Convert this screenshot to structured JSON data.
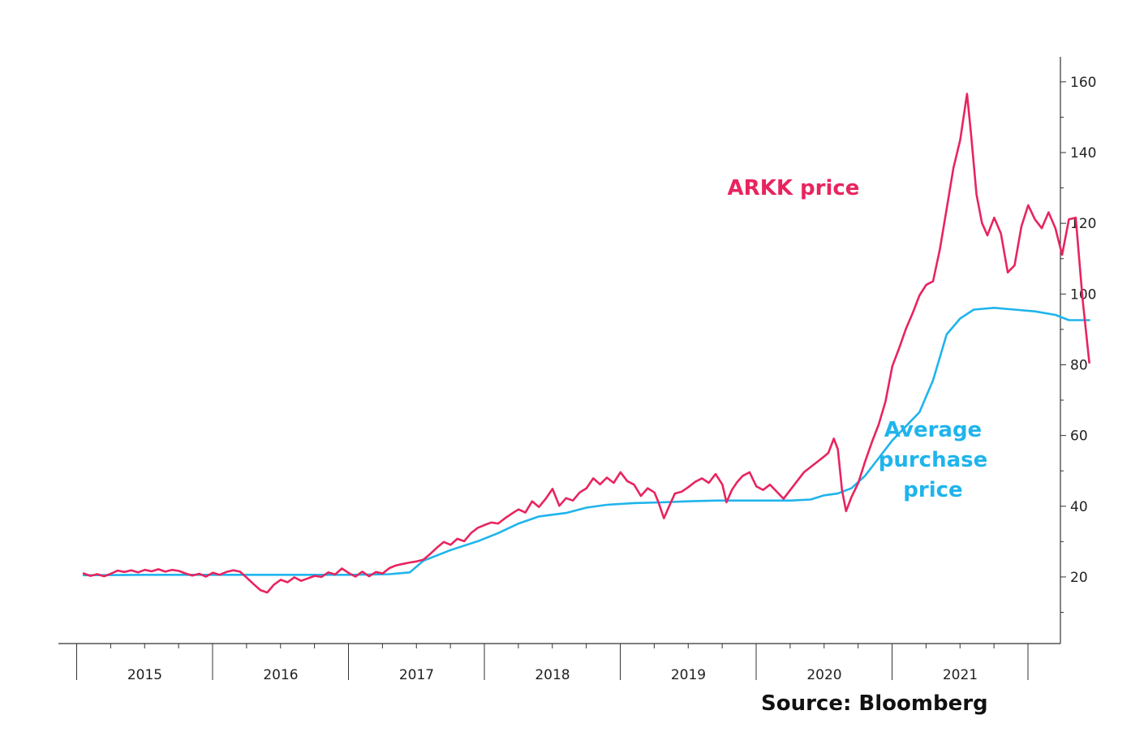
{
  "chart_data": {
    "type": "line",
    "xlim": [
      2014.55,
      2021.95
    ],
    "ylim": [
      0,
      165
    ],
    "x_tick_labels": [
      "2015",
      "2016",
      "2017",
      "2018",
      "2019",
      "2020",
      "2021"
    ],
    "y_tick_labels": [
      "20",
      "40",
      "60",
      "80",
      "100",
      "120",
      "140",
      "160"
    ],
    "y_ticks": [
      20,
      40,
      60,
      80,
      100,
      120,
      140,
      160
    ],
    "series_labels": {
      "arkk": "ARKK price",
      "avg": [
        "Average",
        "purchase",
        "price"
      ]
    },
    "colors": {
      "arkk": "#e8245f",
      "avg": "#1fb4ec",
      "axis": "#333333"
    },
    "series": [
      {
        "name": "ARKK price",
        "points": [
          [
            2014.55,
            21.0
          ],
          [
            2014.6,
            20.3
          ],
          [
            2014.65,
            20.8
          ],
          [
            2014.7,
            20.2
          ],
          [
            2014.75,
            20.9
          ],
          [
            2014.8,
            21.8
          ],
          [
            2014.85,
            21.4
          ],
          [
            2014.9,
            21.9
          ],
          [
            2014.95,
            21.3
          ],
          [
            2015.0,
            22.0
          ],
          [
            2015.05,
            21.6
          ],
          [
            2015.1,
            22.2
          ],
          [
            2015.15,
            21.5
          ],
          [
            2015.2,
            22.0
          ],
          [
            2015.25,
            21.7
          ],
          [
            2015.3,
            21.0
          ],
          [
            2015.35,
            20.4
          ],
          [
            2015.4,
            20.9
          ],
          [
            2015.45,
            20.1
          ],
          [
            2015.5,
            21.2
          ],
          [
            2015.55,
            20.6
          ],
          [
            2015.6,
            21.4
          ],
          [
            2015.65,
            21.9
          ],
          [
            2015.7,
            21.5
          ],
          [
            2015.75,
            19.8
          ],
          [
            2015.8,
            18.0
          ],
          [
            2015.85,
            16.3
          ],
          [
            2015.9,
            15.6
          ],
          [
            2015.95,
            17.8
          ],
          [
            2016.0,
            19.2
          ],
          [
            2016.05,
            18.5
          ],
          [
            2016.1,
            19.9
          ],
          [
            2016.15,
            18.9
          ],
          [
            2016.2,
            19.6
          ],
          [
            2016.25,
            20.3
          ],
          [
            2016.3,
            20.0
          ],
          [
            2016.35,
            21.3
          ],
          [
            2016.4,
            20.7
          ],
          [
            2016.45,
            22.4
          ],
          [
            2016.5,
            21.1
          ],
          [
            2016.55,
            20.1
          ],
          [
            2016.6,
            21.5
          ],
          [
            2016.65,
            20.2
          ],
          [
            2016.7,
            21.4
          ],
          [
            2016.75,
            21.0
          ],
          [
            2016.8,
            22.5
          ],
          [
            2016.85,
            23.3
          ],
          [
            2016.9,
            23.7
          ],
          [
            2016.95,
            24.1
          ],
          [
            2017.0,
            24.4
          ],
          [
            2017.05,
            24.9
          ],
          [
            2017.1,
            26.5
          ],
          [
            2017.15,
            28.3
          ],
          [
            2017.2,
            29.9
          ],
          [
            2017.25,
            29.1
          ],
          [
            2017.3,
            30.8
          ],
          [
            2017.35,
            30.1
          ],
          [
            2017.4,
            32.4
          ],
          [
            2017.45,
            33.9
          ],
          [
            2017.5,
            34.7
          ],
          [
            2017.55,
            35.4
          ],
          [
            2017.6,
            35.1
          ],
          [
            2017.65,
            36.6
          ],
          [
            2017.7,
            37.9
          ],
          [
            2017.75,
            39.1
          ],
          [
            2017.8,
            38.2
          ],
          [
            2017.85,
            41.4
          ],
          [
            2017.9,
            39.8
          ],
          [
            2017.95,
            42.1
          ],
          [
            2018.0,
            44.9
          ],
          [
            2018.05,
            40.1
          ],
          [
            2018.1,
            42.3
          ],
          [
            2018.15,
            41.6
          ],
          [
            2018.2,
            43.9
          ],
          [
            2018.25,
            45.1
          ],
          [
            2018.3,
            47.9
          ],
          [
            2018.35,
            46.2
          ],
          [
            2018.4,
            48.1
          ],
          [
            2018.45,
            46.6
          ],
          [
            2018.5,
            49.6
          ],
          [
            2018.55,
            47.1
          ],
          [
            2018.6,
            46.1
          ],
          [
            2018.65,
            42.9
          ],
          [
            2018.7,
            45.1
          ],
          [
            2018.75,
            43.9
          ],
          [
            2018.78,
            41.1
          ],
          [
            2018.82,
            36.6
          ],
          [
            2018.86,
            40.1
          ],
          [
            2018.9,
            43.6
          ],
          [
            2018.95,
            44.1
          ],
          [
            2019.0,
            45.4
          ],
          [
            2019.05,
            46.9
          ],
          [
            2019.1,
            47.9
          ],
          [
            2019.15,
            46.6
          ],
          [
            2019.2,
            49.1
          ],
          [
            2019.25,
            46.1
          ],
          [
            2019.28,
            41.1
          ],
          [
            2019.32,
            44.6
          ],
          [
            2019.36,
            46.9
          ],
          [
            2019.4,
            48.6
          ],
          [
            2019.45,
            49.6
          ],
          [
            2019.5,
            45.6
          ],
          [
            2019.55,
            44.6
          ],
          [
            2019.6,
            46.1
          ],
          [
            2019.65,
            44.1
          ],
          [
            2019.7,
            42.1
          ],
          [
            2019.75,
            44.6
          ],
          [
            2019.8,
            47.1
          ],
          [
            2019.85,
            49.6
          ],
          [
            2019.9,
            51.1
          ],
          [
            2019.95,
            52.6
          ],
          [
            2020.0,
            54.1
          ],
          [
            2020.03,
            55.1
          ],
          [
            2020.07,
            59.1
          ],
          [
            2020.1,
            56.1
          ],
          [
            2020.13,
            44.6
          ],
          [
            2020.16,
            38.6
          ],
          [
            2020.2,
            42.6
          ],
          [
            2020.25,
            46.6
          ],
          [
            2020.3,
            52.6
          ],
          [
            2020.35,
            58.1
          ],
          [
            2020.4,
            63.1
          ],
          [
            2020.45,
            69.6
          ],
          [
            2020.5,
            79.6
          ],
          [
            2020.55,
            84.6
          ],
          [
            2020.6,
            90.1
          ],
          [
            2020.65,
            94.6
          ],
          [
            2020.7,
            99.6
          ],
          [
            2020.75,
            102.6
          ],
          [
            2020.8,
            103.6
          ],
          [
            2020.85,
            112.6
          ],
          [
            2020.9,
            124.1
          ],
          [
            2020.95,
            135.6
          ],
          [
            2021.0,
            143.6
          ],
          [
            2021.05,
            156.6
          ],
          [
            2021.08,
            145.1
          ],
          [
            2021.12,
            128.1
          ],
          [
            2021.16,
            120.1
          ],
          [
            2021.2,
            116.6
          ],
          [
            2021.25,
            121.6
          ],
          [
            2021.3,
            117.1
          ],
          [
            2021.35,
            106.1
          ],
          [
            2021.4,
            108.1
          ],
          [
            2021.45,
            119.1
          ],
          [
            2021.5,
            125.1
          ],
          [
            2021.55,
            121.1
          ],
          [
            2021.6,
            118.6
          ],
          [
            2021.65,
            123.1
          ],
          [
            2021.7,
            118.6
          ],
          [
            2021.75,
            111.1
          ],
          [
            2021.8,
            121.1
          ],
          [
            2021.85,
            121.6
          ],
          [
            2021.9,
            98.6
          ],
          [
            2021.95,
            80.6
          ]
        ]
      },
      {
        "name": "Average purchase price",
        "points": [
          [
            2014.55,
            20.5
          ],
          [
            2015.0,
            20.6
          ],
          [
            2015.5,
            20.6
          ],
          [
            2016.0,
            20.6
          ],
          [
            2016.5,
            20.6
          ],
          [
            2016.8,
            20.8
          ],
          [
            2016.95,
            21.3
          ],
          [
            2017.05,
            24.6
          ],
          [
            2017.25,
            27.6
          ],
          [
            2017.45,
            30.1
          ],
          [
            2017.6,
            32.4
          ],
          [
            2017.75,
            35.1
          ],
          [
            2017.9,
            37.1
          ],
          [
            2018.0,
            37.6
          ],
          [
            2018.1,
            38.1
          ],
          [
            2018.25,
            39.6
          ],
          [
            2018.4,
            40.4
          ],
          [
            2018.6,
            40.9
          ],
          [
            2018.8,
            41.1
          ],
          [
            2019.0,
            41.4
          ],
          [
            2019.2,
            41.6
          ],
          [
            2019.5,
            41.6
          ],
          [
            2019.75,
            41.6
          ],
          [
            2019.9,
            41.9
          ],
          [
            2020.0,
            43.1
          ],
          [
            2020.1,
            43.6
          ],
          [
            2020.2,
            45.1
          ],
          [
            2020.3,
            48.6
          ],
          [
            2020.4,
            53.6
          ],
          [
            2020.5,
            58.6
          ],
          [
            2020.6,
            62.6
          ],
          [
            2020.7,
            66.6
          ],
          [
            2020.8,
            75.6
          ],
          [
            2020.9,
            88.6
          ],
          [
            2021.0,
            93.1
          ],
          [
            2021.1,
            95.6
          ],
          [
            2021.25,
            96.1
          ],
          [
            2021.4,
            95.6
          ],
          [
            2021.55,
            95.1
          ],
          [
            2021.7,
            94.1
          ],
          [
            2021.8,
            92.6
          ],
          [
            2021.95,
            92.6
          ]
        ]
      }
    ]
  },
  "source": "Source: Bloomberg"
}
